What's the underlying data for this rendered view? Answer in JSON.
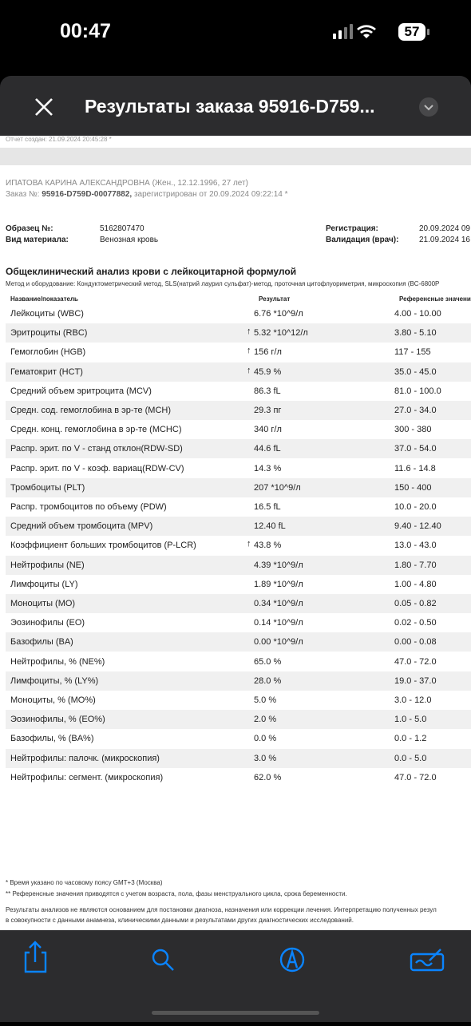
{
  "status": {
    "time": "00:47",
    "battery": "57"
  },
  "header": {
    "title": "Результаты заказа 95916-D759..."
  },
  "document": {
    "created": "Отчет создан: 21.09.2024 20:45:28 *",
    "patient": "ИПАТОВА КАРИНА АЛЕКСАНДРОВНА (Жен., 12.12.1996, 27 лет)",
    "order_label": "Заказ №: ",
    "order_number": "95916-D759D-00077882,",
    "order_rest": " зарегистрирован от 20.09.2024 09:22:14 *",
    "info": [
      {
        "label": "Образец №:",
        "value": "5162807470",
        "label2": "Регистрация:",
        "value2": "20.09.2024 09"
      },
      {
        "label": "Вид материала:",
        "value": "Венозная кровь",
        "label2": "Валидация (врач):",
        "value2": "21.09.2024 16"
      }
    ],
    "section_title": "Общеклинический анализ крови с лейкоцитарной формулой",
    "method": "Метод и оборудование: Кондуктометрический метод, SLS(натрий лаурил сульфат)-метод, проточная цитофлуориметрия, микроскопия (BC-6800P",
    "columns": [
      "Название/показатель",
      "Результат",
      "Референсные значения"
    ],
    "rows": [
      {
        "name": "Лейкоциты (WBC)",
        "result": "6.76 *10^9/л",
        "ref": "4.00 - 10.00"
      },
      {
        "name": "Эритроциты (RBC)",
        "result": "5.32 *10^12/л",
        "ref": "3.80 - 5.10",
        "flag": "↑"
      },
      {
        "name": "Гемоглобин (HGB)",
        "result": "156 г/л",
        "ref": "117 - 155",
        "flag": "↑"
      },
      {
        "name": "Гематокрит (HCT)",
        "result": "45.9 %",
        "ref": "35.0 - 45.0",
        "flag": "↑"
      },
      {
        "name": "Средний объем эритроцита (MCV)",
        "result": "86.3 fL",
        "ref": "81.0 - 100.0"
      },
      {
        "name": "Средн. сод. гемоглобина в эр-те (MCH)",
        "result": "29.3 пг",
        "ref": "27.0 - 34.0"
      },
      {
        "name": "Средн. конц. гемоглобина в эр-те (MCHC)",
        "result": "340 г/л",
        "ref": "300 - 380"
      },
      {
        "name": "Распр. эрит. по V - станд отклон(RDW-SD)",
        "result": "44.6 fL",
        "ref": "37.0 - 54.0"
      },
      {
        "name": "Распр. эрит. по V - коэф. вариац(RDW-CV)",
        "result": "14.3 %",
        "ref": "11.6 - 14.8"
      },
      {
        "name": "Тромбоциты (PLT)",
        "result": "207 *10^9/л",
        "ref": "150 - 400"
      },
      {
        "name": "Распр. тромбоцитов по объему (PDW)",
        "result": "16.5 fL",
        "ref": "10.0 - 20.0"
      },
      {
        "name": "Средний объем тромбоцита (MPV)",
        "result": "12.40 fL",
        "ref": "9.40 - 12.40"
      },
      {
        "name": "Коэффициент больших тромбоцитов (P-LCR)",
        "result": "43.8 %",
        "ref": "13.0 - 43.0",
        "flag": "↑"
      },
      {
        "name": "Нейтрофилы (NE)",
        "result": "4.39 *10^9/л",
        "ref": "1.80 - 7.70"
      },
      {
        "name": "Лимфоциты (LY)",
        "result": "1.89 *10^9/л",
        "ref": "1.00 - 4.80"
      },
      {
        "name": "Моноциты (MO)",
        "result": "0.34 *10^9/л",
        "ref": "0.05 - 0.82"
      },
      {
        "name": "Эозинофилы (EO)",
        "result": "0.14 *10^9/л",
        "ref": "0.02 - 0.50"
      },
      {
        "name": "Базофилы (BA)",
        "result": "0.00 *10^9/л",
        "ref": "0.00 - 0.08"
      },
      {
        "name": "Нейтрофилы, % (NE%)",
        "result": "65.0 %",
        "ref": "47.0 - 72.0"
      },
      {
        "name": "Лимфоциты, % (LY%)",
        "result": "28.0 %",
        "ref": "19.0 - 37.0"
      },
      {
        "name": "Моноциты, % (MO%)",
        "result": "5.0 %",
        "ref": "3.0 - 12.0"
      },
      {
        "name": "Эозинофилы, % (EO%)",
        "result": "2.0 %",
        "ref": "1.0 - 5.0"
      },
      {
        "name": "Базофилы, % (BA%)",
        "result": "0.0 %",
        "ref": "0.0 - 1.2"
      },
      {
        "name": "Нейтрофилы: палочк. (микроскопия)",
        "result": "3.0 %",
        "ref": "0.0 - 5.0"
      },
      {
        "name": "Нейтрофилы: сегмент. (микроскопия)",
        "result": "62.0 %",
        "ref": "47.0 - 72.0"
      }
    ],
    "footnotes": [
      "* Время указано по часовому поясу GMT+3 (Москва)",
      "** Референсные значения приводятся с учетом возраста, пола, фазы менструального цикла, срока беременности."
    ],
    "disclaimer": [
      "Результаты анализов не являются основанием для постановки диагноза, назначения или коррекции лечения. Интерпретацию полученных резул",
      "в совокупности с данными анамнеза, клиническими данными и результатами других диагностических исследований."
    ]
  }
}
